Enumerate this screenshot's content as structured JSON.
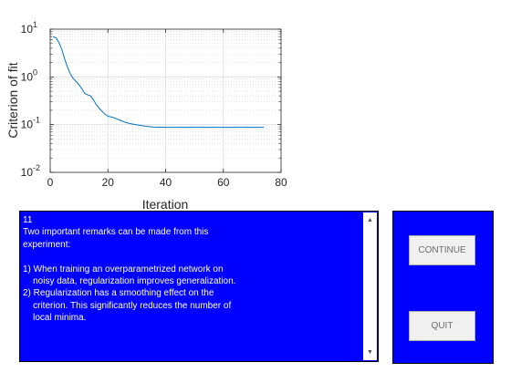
{
  "chart_data": {
    "type": "line",
    "xlabel": "Iteration",
    "ylabel": "Criterion of fit",
    "xlim": [
      0,
      80
    ],
    "ylim": [
      0.01,
      10
    ],
    "yscale": "log",
    "grid": true,
    "x_ticks": [
      "0",
      "20",
      "40",
      "60",
      "80"
    ],
    "y_ticks": [
      {
        "base": "10",
        "exp": "-2"
      },
      {
        "base": "10",
        "exp": "-1"
      },
      {
        "base": "10",
        "exp": "0"
      },
      {
        "base": "10",
        "exp": "1"
      }
    ],
    "series": [
      {
        "color": "#0072bd",
        "x": [
          1,
          2,
          3,
          4,
          5,
          6,
          7,
          8,
          9,
          10,
          11,
          12,
          13,
          14,
          15,
          16,
          17,
          18,
          19,
          20,
          22,
          24,
          26,
          28,
          30,
          32,
          34,
          36,
          40,
          45,
          50,
          55,
          60,
          65,
          70,
          74
        ],
        "y": [
          7.0,
          6.6,
          5.3,
          3.8,
          2.4,
          1.6,
          1.15,
          0.92,
          0.8,
          0.68,
          0.56,
          0.45,
          0.42,
          0.4,
          0.33,
          0.26,
          0.22,
          0.19,
          0.165,
          0.15,
          0.14,
          0.125,
          0.112,
          0.104,
          0.099,
          0.095,
          0.091,
          0.089,
          0.088,
          0.088,
          0.088,
          0.088,
          0.088,
          0.088,
          0.088,
          0.088
        ]
      }
    ]
  },
  "textbox": {
    "lines": [
      "11",
      "Two important remarks can be made from this",
      "experiment:",
      "",
      "1) When training an overparametrized network on",
      "    noisy data, regularization improves generalization.",
      "2) Regularization has a smoothing effect on the",
      "    criterion. This significantly reduces the number of",
      "    local minima."
    ]
  },
  "buttons": {
    "continue_label": "CONTINUE",
    "quit_label": "QUIT"
  },
  "icons": {
    "scroll_up": "scroll-up-arrow-icon",
    "scroll_down": "scroll-down-arrow-icon"
  },
  "colors": {
    "panel_bg": "#0000ff",
    "line": "#0072bd"
  }
}
